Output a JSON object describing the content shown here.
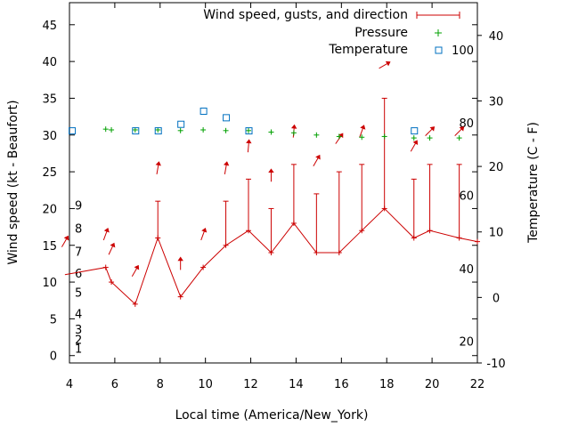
{
  "chart_data": {
    "type": "line",
    "xlabel": "Local time (America/New_York)",
    "ylabel_left": "Wind speed (kt - Beaufort)",
    "ylabel_right": "Temperature (C - F)",
    "xlim": [
      4,
      22
    ],
    "ylim_left": [
      -1,
      48
    ],
    "ylim_right": [
      -10,
      45
    ],
    "x_ticks": [
      "4",
      "6",
      "8",
      "10",
      "12",
      "14",
      "16",
      "18",
      "20",
      "22"
    ],
    "y_ticks_left": [
      "0",
      "5",
      "10",
      "15",
      "20",
      "25",
      "30",
      "35",
      "40",
      "45"
    ],
    "y_ticks_right_c": [
      "-10",
      "0",
      "10",
      "20",
      "30",
      "40"
    ],
    "beaufort_labels": [
      {
        "text": "1",
        "speed": 1.0
      },
      {
        "text": "2",
        "speed": 2.2
      },
      {
        "text": "3",
        "speed": 3.6
      },
      {
        "text": "4",
        "speed": 5.7
      },
      {
        "text": "5",
        "speed": 8.6
      },
      {
        "text": "6",
        "speed": 11.2
      },
      {
        "text": "7",
        "speed": 14.2
      },
      {
        "text": "8",
        "speed": 17.3
      },
      {
        "text": "9",
        "speed": 20.5
      }
    ],
    "fahrenheit_labels": [
      {
        "text": "20",
        "temp_c": -6.7
      },
      {
        "text": "40",
        "temp_c": 4.4
      },
      {
        "text": "60",
        "temp_c": 15.6
      },
      {
        "text": "80",
        "temp_c": 26.7
      },
      {
        "text": "100",
        "temp_c": 37.8
      }
    ],
    "legend": [
      "Wind speed, gusts, and direction",
      "Pressure",
      "Temperature"
    ],
    "legend_position": "top-right",
    "colors": {
      "wind": "#cc0000",
      "pressure": "#00a000",
      "temperature": "#0070c0",
      "arrow": "#cc0000"
    },
    "wind": [
      {
        "x": 3.8,
        "speed": 11,
        "gust": null,
        "dir": 30
      },
      {
        "x": 5.6,
        "speed": 12,
        "gust": null,
        "dir": 20
      },
      {
        "x": 5.85,
        "speed": 10,
        "gust": null,
        "dir": 25
      },
      {
        "x": 6.9,
        "speed": 7,
        "gust": null,
        "dir": 30
      },
      {
        "x": 7.9,
        "speed": 16,
        "gust": 21,
        "dir": 10
      },
      {
        "x": 8.9,
        "speed": 8,
        "gust": null,
        "dir": 0
      },
      {
        "x": 9.9,
        "speed": 12,
        "gust": null,
        "dir": 20
      },
      {
        "x": 10.9,
        "speed": 15,
        "gust": 21,
        "dir": 10
      },
      {
        "x": 11.9,
        "speed": 17,
        "gust": 24,
        "dir": 5
      },
      {
        "x": 12.9,
        "speed": 14,
        "gust": 20,
        "dir": 0
      },
      {
        "x": 13.9,
        "speed": 18,
        "gust": 26,
        "dir": 5
      },
      {
        "x": 14.9,
        "speed": 14,
        "gust": 22,
        "dir": 30
      },
      {
        "x": 15.9,
        "speed": 14,
        "gust": 25,
        "dir": 35
      },
      {
        "x": 16.9,
        "speed": 17,
        "gust": 26,
        "dir": 20
      },
      {
        "x": 17.9,
        "speed": 20,
        "gust": 35,
        "dir": 60
      },
      {
        "x": 19.2,
        "speed": 16,
        "gust": 24,
        "dir": 30
      },
      {
        "x": 19.9,
        "speed": 17,
        "gust": 26,
        "dir": 45
      },
      {
        "x": 21.2,
        "speed": 16,
        "gust": 26,
        "dir": 45
      },
      {
        "x": 22.0,
        "speed": 15.5,
        "gust": null,
        "dir": null
      }
    ],
    "arrow_heights": [
      15.5,
      16.5,
      14.5,
      11.5,
      25.5,
      12.5,
      16.5,
      25.5,
      28.5,
      24.5,
      30.5,
      26.5,
      29.5,
      30.5,
      39.5,
      28.5,
      30.5,
      30.5
    ],
    "pressure": [
      {
        "x": 5.6,
        "y": 30.8
      },
      {
        "x": 5.85,
        "y": 30.7
      },
      {
        "x": 6.9,
        "y": 30.7
      },
      {
        "x": 7.9,
        "y": 30.7
      },
      {
        "x": 8.9,
        "y": 30.6
      },
      {
        "x": 9.9,
        "y": 30.7
      },
      {
        "x": 10.9,
        "y": 30.6
      },
      {
        "x": 11.9,
        "y": 30.6
      },
      {
        "x": 12.9,
        "y": 30.4
      },
      {
        "x": 13.9,
        "y": 30.3
      },
      {
        "x": 14.9,
        "y": 30.0
      },
      {
        "x": 15.9,
        "y": 29.8
      },
      {
        "x": 16.9,
        "y": 29.7
      },
      {
        "x": 17.9,
        "y": 29.8
      },
      {
        "x": 19.2,
        "y": 29.6
      },
      {
        "x": 19.9,
        "y": 29.6
      },
      {
        "x": 21.2,
        "y": 29.6
      }
    ],
    "temperature_c": [
      {
        "x": 4.1,
        "y": 25.5
      },
      {
        "x": 6.9,
        "y": 25.5
      },
      {
        "x": 7.9,
        "y": 25.5
      },
      {
        "x": 8.9,
        "y": 26.5
      },
      {
        "x": 9.9,
        "y": 28.5
      },
      {
        "x": 10.9,
        "y": 27.5
      },
      {
        "x": 11.9,
        "y": 25.5
      },
      {
        "x": 19.2,
        "y": 25.5
      }
    ]
  }
}
